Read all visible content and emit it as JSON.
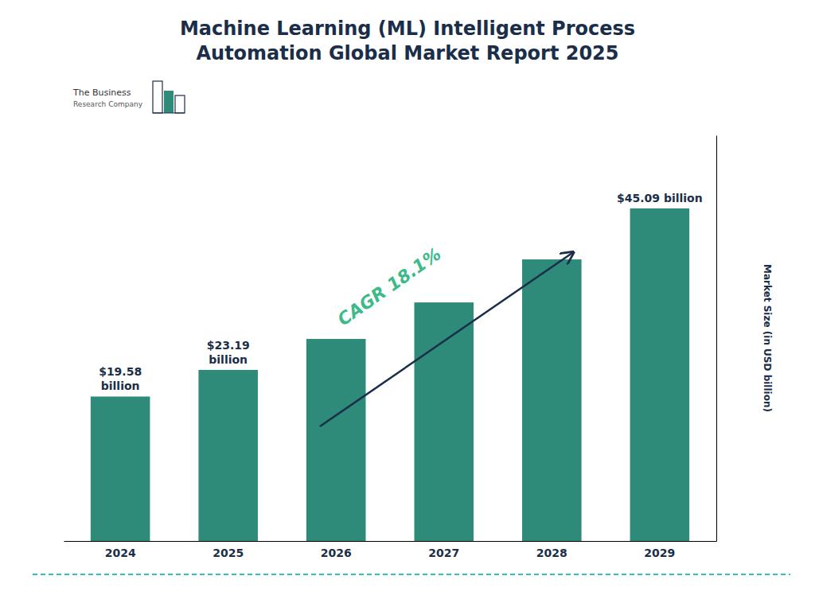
{
  "chart_data": {
    "type": "bar",
    "title": "Machine Learning (ML) Intelligent Process\nAutomation Global Market Report 2025",
    "categories": [
      "2024",
      "2025",
      "2026",
      "2027",
      "2028",
      "2029"
    ],
    "values": [
      19.58,
      23.19,
      27.39,
      32.34,
      38.17,
      45.09
    ],
    "color": "#2E8B7A",
    "ylim": [
      0,
      55
    ],
    "ylabel": "Market Size (in USD billion)",
    "grid": false,
    "tick_labels": "x",
    "data_labels": true,
    "value_labels": [
      "$19.58\nbillion",
      "$23.19\nbillion",
      null,
      null,
      null,
      "$45.09 billion"
    ],
    "annotations": [
      "CAGR 18.1%",
      "The Business",
      "Research Company"
    ]
  }
}
